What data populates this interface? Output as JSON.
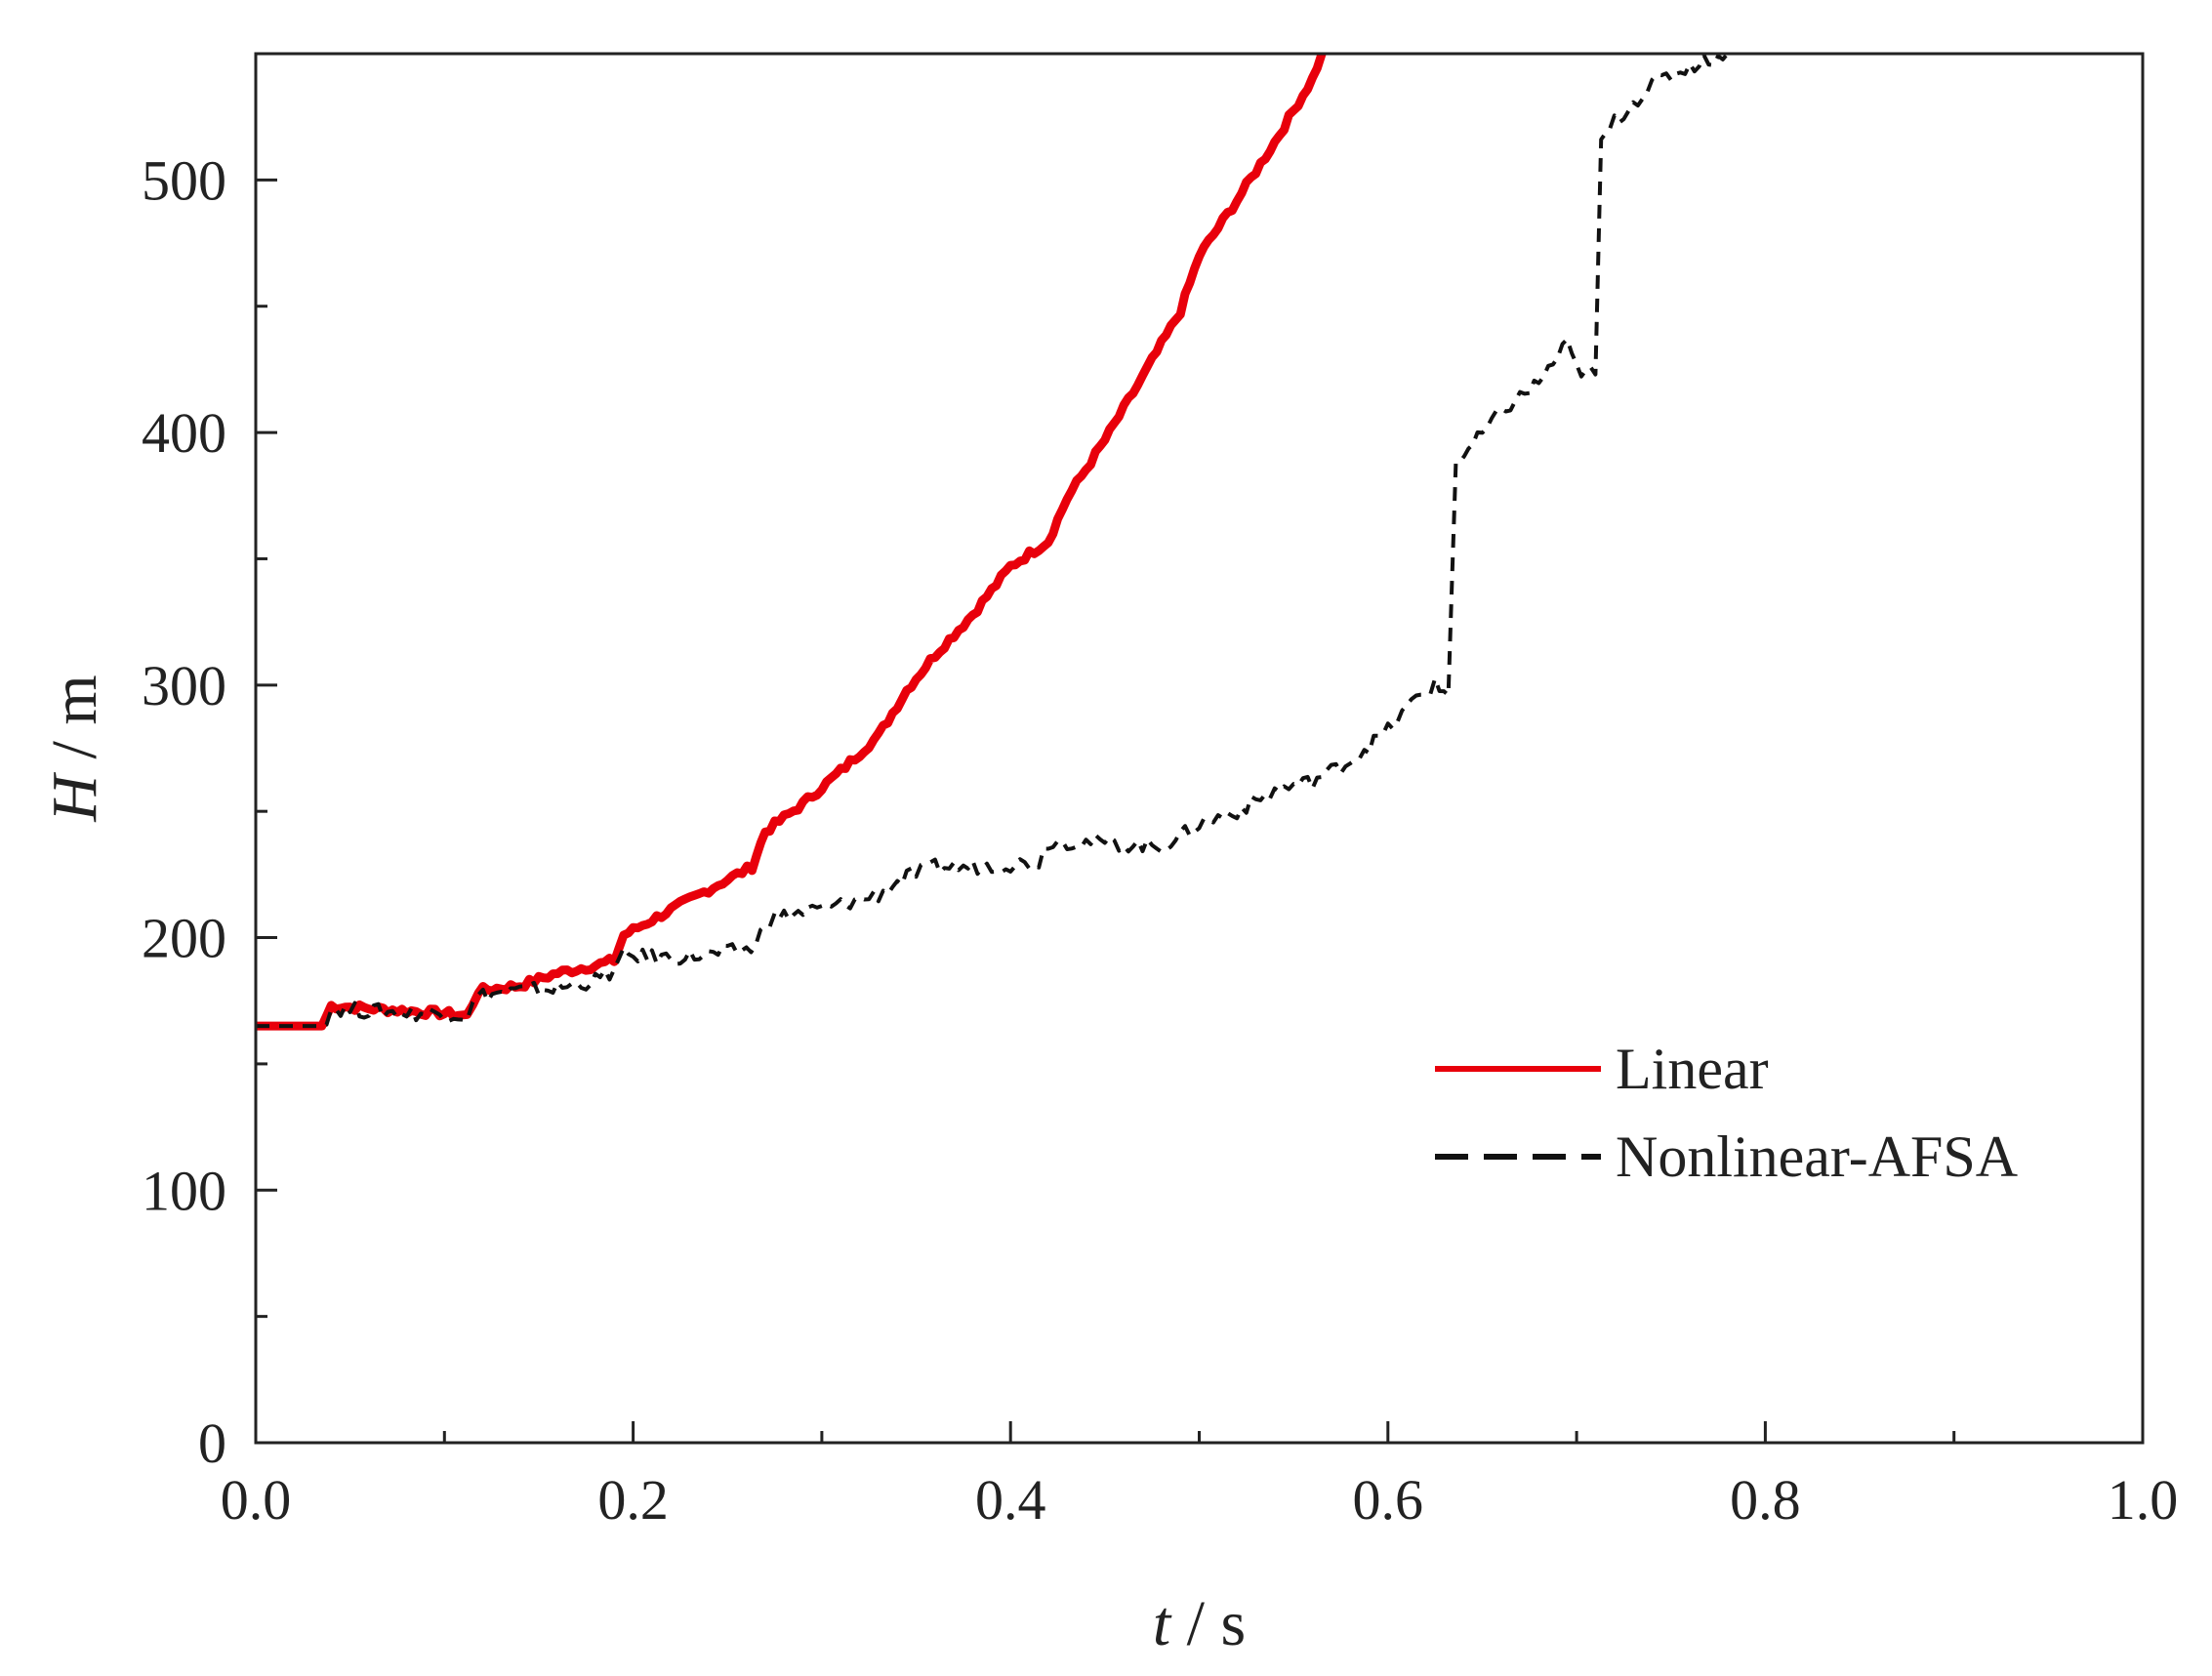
{
  "chart_data": {
    "type": "line",
    "title": "",
    "xlabel": {
      "var": "t",
      "sep": " / ",
      "unit": "s"
    },
    "ylabel": {
      "var": "H",
      "sep": " / ",
      "unit": "m"
    },
    "xlim": [
      0.0,
      1.0
    ],
    "ylim": [
      0,
      550
    ],
    "xticks": [
      0.0,
      0.2,
      0.4,
      0.6,
      0.8,
      1.0
    ],
    "xtick_labels": [
      "0.0",
      "0.2",
      "0.4",
      "0.6",
      "0.8",
      "1.0"
    ],
    "yticks": [
      0,
      100,
      200,
      300,
      400,
      500
    ],
    "ytick_labels": [
      "0",
      "100",
      "200",
      "300",
      "400",
      "500"
    ],
    "grid": false,
    "legend": "center-right",
    "series": [
      {
        "name": "Linear",
        "color": "#e8000b",
        "style": "solid",
        "x": [
          0.0,
          0.035,
          0.04,
          0.06,
          0.08,
          0.1,
          0.112,
          0.118,
          0.14,
          0.16,
          0.18,
          0.19,
          0.195,
          0.21,
          0.23,
          0.25,
          0.263,
          0.27,
          0.29,
          0.31,
          0.33,
          0.345,
          0.36,
          0.38,
          0.4,
          0.42,
          0.43,
          0.45,
          0.47,
          0.49,
          0.5,
          0.52,
          0.54,
          0.56,
          0.565
        ],
        "y": [
          165,
          165,
          173,
          172,
          171,
          170,
          169,
          179,
          181,
          186,
          189,
          191,
          201,
          207,
          215,
          223,
          228,
          242,
          253,
          266,
          280,
          298,
          312,
          328,
          347,
          357,
          374,
          397,
          422,
          448,
          470,
          492,
          515,
          540,
          550
        ]
      },
      {
        "name": "Nonlinear-AFSA",
        "color": "#111111",
        "style": "dashed",
        "x": [
          0.0,
          0.035,
          0.04,
          0.06,
          0.08,
          0.1,
          0.112,
          0.118,
          0.14,
          0.16,
          0.18,
          0.19,
          0.195,
          0.22,
          0.24,
          0.265,
          0.27,
          0.29,
          0.31,
          0.33,
          0.345,
          0.36,
          0.38,
          0.4,
          0.415,
          0.42,
          0.44,
          0.46,
          0.48,
          0.49,
          0.5,
          0.52,
          0.54,
          0.56,
          0.58,
          0.6,
          0.615,
          0.625,
          0.632,
          0.636,
          0.645,
          0.66,
          0.68,
          0.695,
          0.7,
          0.71,
          0.713,
          0.72,
          0.74,
          0.76,
          0.78
        ],
        "y": [
          165,
          165,
          172,
          171,
          170,
          170,
          169,
          177,
          179,
          180,
          183,
          187,
          193,
          192,
          193,
          196,
          207,
          210,
          213,
          217,
          224,
          228,
          228,
          229,
          230,
          238,
          238,
          237,
          236,
          240,
          245,
          250,
          258,
          262,
          270,
          282,
          295,
          300,
          296,
          388,
          395,
          408,
          420,
          435,
          425,
          423,
          515,
          523,
          538,
          545,
          550
        ]
      }
    ]
  }
}
